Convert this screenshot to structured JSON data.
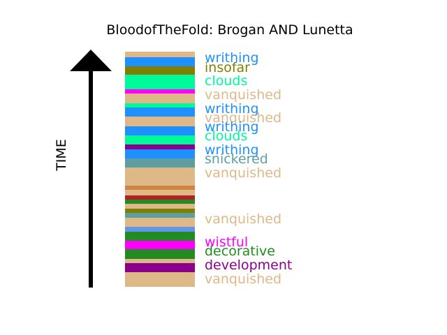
{
  "title": "BloodofTheFold: Brogan AND Lunetta",
  "axis_label": "TIME",
  "strip": {
    "base_color": "#deb887",
    "bands": [
      {
        "from": 0.024,
        "to": 0.061,
        "color": "#1e90ff"
      },
      {
        "from": 0.061,
        "to": 0.099,
        "color": "#808000"
      },
      {
        "from": 0.099,
        "to": 0.16,
        "color": "#00fa9a"
      },
      {
        "from": 0.16,
        "to": 0.179,
        "color": "#ff00ff"
      },
      {
        "from": 0.219,
        "to": 0.237,
        "color": "#00fa9a"
      },
      {
        "from": 0.237,
        "to": 0.276,
        "color": "#1e90ff"
      },
      {
        "from": 0.318,
        "to": 0.356,
        "color": "#1e90ff"
      },
      {
        "from": 0.356,
        "to": 0.395,
        "color": "#00fa9a"
      },
      {
        "from": 0.395,
        "to": 0.415,
        "color": "#8b008b"
      },
      {
        "from": 0.415,
        "to": 0.454,
        "color": "#1e90ff"
      },
      {
        "from": 0.454,
        "to": 0.493,
        "color": "#5f9ea0"
      },
      {
        "from": 0.57,
        "to": 0.589,
        "color": "#cd853f"
      },
      {
        "from": 0.61,
        "to": 0.629,
        "color": "#b22222"
      },
      {
        "from": 0.629,
        "to": 0.647,
        "color": "#228b22"
      },
      {
        "from": 0.667,
        "to": 0.686,
        "color": "#808000"
      },
      {
        "from": 0.686,
        "to": 0.706,
        "color": "#5f9ea0"
      },
      {
        "from": 0.745,
        "to": 0.765,
        "color": "#6495ed"
      },
      {
        "from": 0.765,
        "to": 0.803,
        "color": "#228b22"
      },
      {
        "from": 0.803,
        "to": 0.841,
        "color": "#ff00ff"
      },
      {
        "from": 0.841,
        "to": 0.88,
        "color": "#228b22"
      },
      {
        "from": 0.898,
        "to": 0.938,
        "color": "#8b008b"
      }
    ]
  },
  "words": [
    {
      "text": "writhing",
      "color": "#1e90ff",
      "pos": 0.027
    },
    {
      "text": "insofar",
      "color": "#808000",
      "pos": 0.067
    },
    {
      "text": "clouds",
      "color": "#00fa9a",
      "pos": 0.125
    },
    {
      "text": "vanquished",
      "color": "#deb887",
      "pos": 0.184
    },
    {
      "text": "writhing",
      "color": "#1e90ff",
      "pos": 0.244
    },
    {
      "text": "vanquished",
      "color": "#deb887",
      "pos": 0.283
    },
    {
      "text": "writhing",
      "color": "#1e90ff",
      "pos": 0.32
    },
    {
      "text": "clouds",
      "color": "#00fa9a",
      "pos": 0.359
    },
    {
      "text": "writhing",
      "color": "#1e90ff",
      "pos": 0.419
    },
    {
      "text": "snickered",
      "color": "#5f9ea0",
      "pos": 0.457
    },
    {
      "text": "vanquished",
      "color": "#deb887",
      "pos": 0.516
    },
    {
      "text": "vanquished",
      "color": "#deb887",
      "pos": 0.712
    },
    {
      "text": "wistful",
      "color": "#ff00ff",
      "pos": 0.81
    },
    {
      "text": "decorative",
      "color": "#228b22",
      "pos": 0.849
    },
    {
      "text": "development",
      "color": "#8b008b",
      "pos": 0.908
    },
    {
      "text": "vanquished",
      "color": "#deb887",
      "pos": 0.968
    }
  ]
}
